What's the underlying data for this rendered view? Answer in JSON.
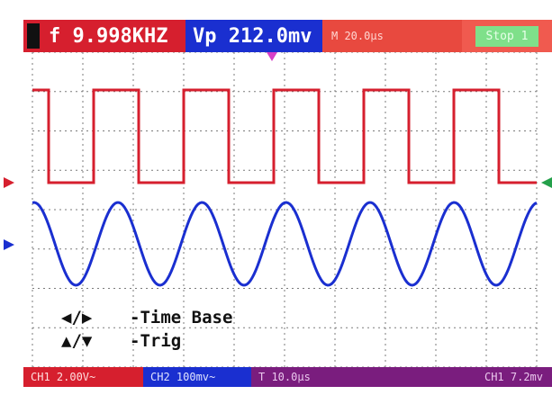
{
  "top_bar": {
    "frequency": "f 9.998KHZ",
    "peak": "Vp 212.0mv",
    "timebase": "M 20.0µs",
    "status": "Stop 1"
  },
  "bottom_bar": {
    "ch1": "CH1 2.00V~",
    "ch2": "CH2 100mv~",
    "trig_left": "T 10.0µs",
    "trig_right": "CH1 7.2mv"
  },
  "help": {
    "line1_keys": "◀/▶",
    "line1_text": "-Time Base",
    "line2_keys": "▲/▼",
    "line2_text": "-Trig"
  },
  "colors": {
    "ch1": "#d61f2e",
    "ch2": "#1a2fd0",
    "trigger": "#7a1d7e",
    "status": "#7fe08a",
    "grid": "#7b7b7b"
  },
  "waveforms": {
    "square_cycles": 5.6,
    "sine_cycles": 6.0
  }
}
